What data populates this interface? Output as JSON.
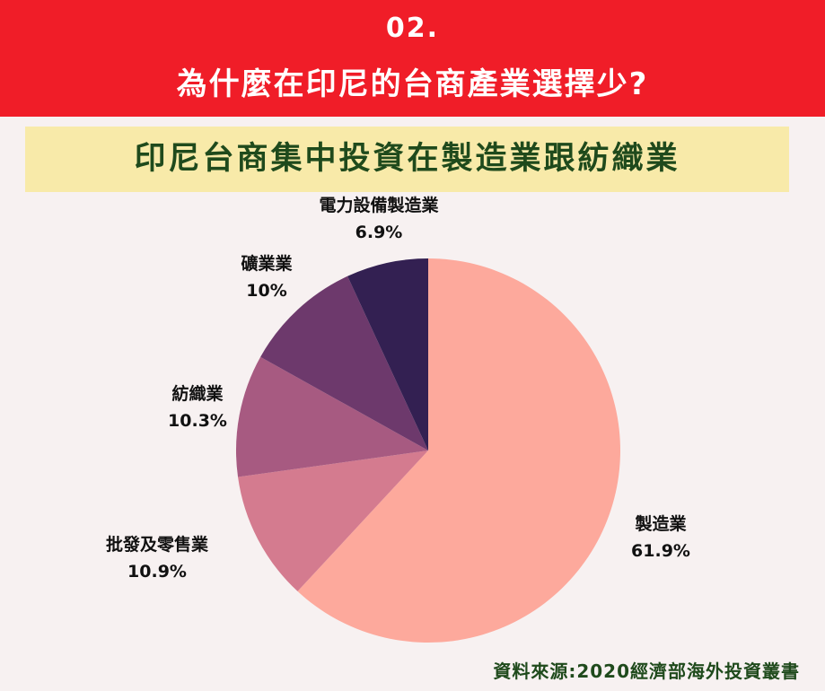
{
  "header": {
    "number": "02.",
    "title": "為什麼在印尼的台商產業選擇少?"
  },
  "subtitle": "印尼台商集中投資在製造業跟紡織業",
  "chart_data": {
    "type": "pie",
    "title": "",
    "categories": [
      "製造業",
      "批發及零售業",
      "紡織業",
      "礦業業",
      "電力設備製造業"
    ],
    "values": [
      61.9,
      10.9,
      10.3,
      10,
      6.9
    ],
    "value_labels": [
      "61.9%",
      "10.9%",
      "10.3%",
      "10%",
      "6.9%"
    ],
    "colors": [
      "#fda99c",
      "#d47b8f",
      "#a75a81",
      "#6d396c",
      "#332052"
    ],
    "start_angle": "top (12 o'clock)",
    "direction": "clockwise",
    "legend": "none"
  },
  "source": "資料來源:2020經濟部海外投資叢書"
}
